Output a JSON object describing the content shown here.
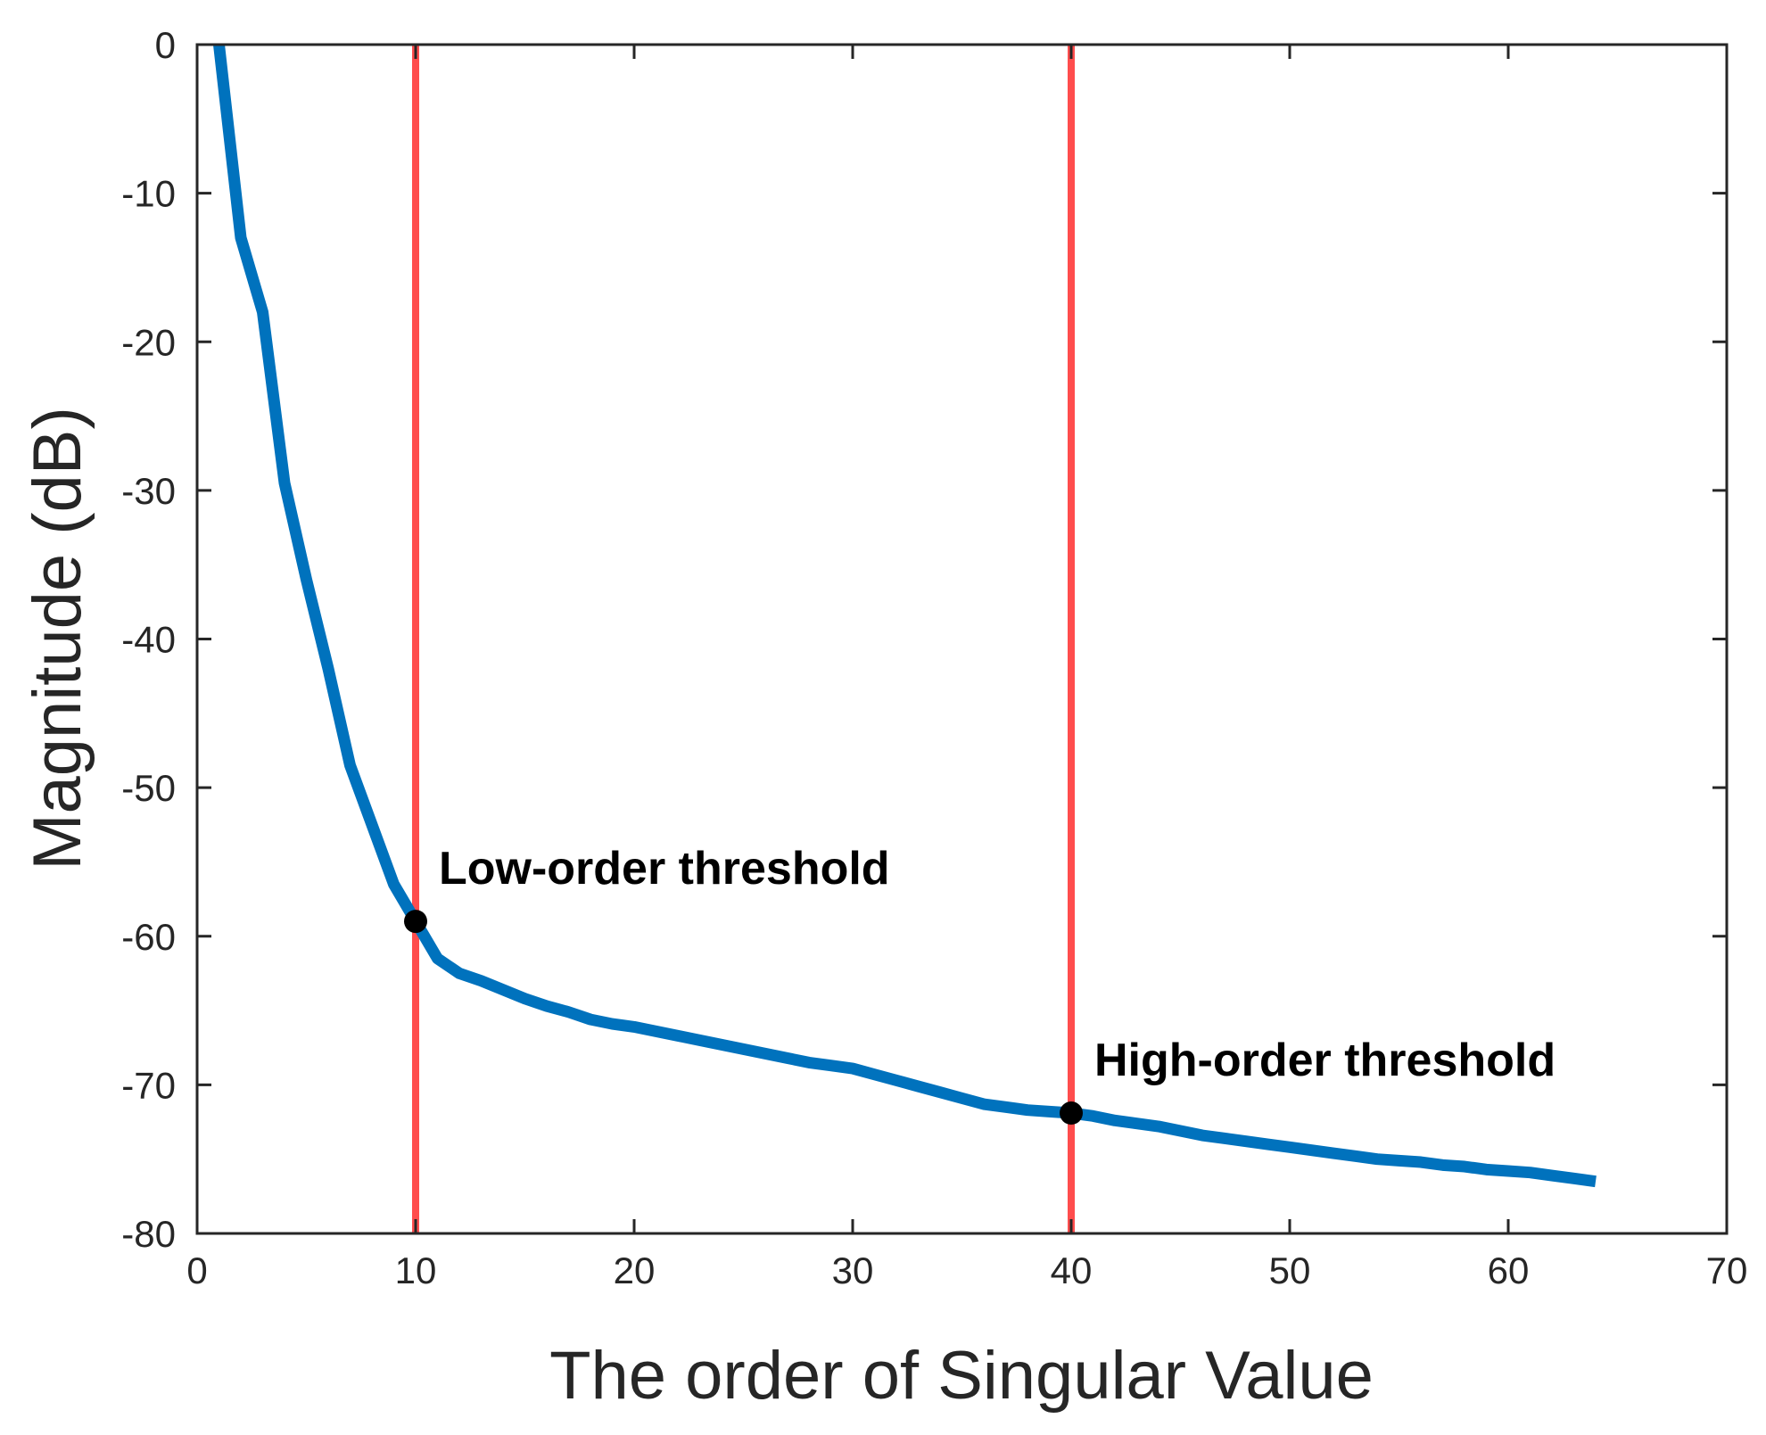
{
  "chart_data": {
    "type": "line",
    "title": "",
    "xlabel": "The order of Singular Value",
    "ylabel": "Magnitude (dB)",
    "xlim": [
      0,
      70
    ],
    "ylim": [
      -80,
      0
    ],
    "xticks": [
      0,
      10,
      20,
      30,
      40,
      50,
      60,
      70
    ],
    "yticks": [
      0,
      -10,
      -20,
      -30,
      -40,
      -50,
      -60,
      -70,
      -80
    ],
    "grid": false,
    "series": [
      {
        "color": "#0072BD",
        "x": [
          1,
          2,
          3,
          4,
          5,
          6,
          7,
          8,
          9,
          10,
          11,
          12,
          13,
          14,
          15,
          16,
          17,
          18,
          19,
          20,
          21,
          22,
          23,
          24,
          25,
          26,
          27,
          28,
          29,
          30,
          31,
          32,
          33,
          34,
          35,
          36,
          37,
          38,
          39,
          40,
          41,
          42,
          43,
          44,
          45,
          46,
          47,
          48,
          49,
          50,
          51,
          52,
          53,
          54,
          55,
          56,
          57,
          58,
          59,
          60,
          61,
          62,
          63,
          64
        ],
        "y": [
          0,
          -13,
          -18,
          -29.5,
          -36,
          -42,
          -48.5,
          -52.5,
          -56.5,
          -59,
          -61.5,
          -62.5,
          -63,
          -63.6,
          -64.2,
          -64.7,
          -65.1,
          -65.6,
          -65.9,
          -66.1,
          -66.4,
          -66.7,
          -67,
          -67.3,
          -67.6,
          -67.9,
          -68.2,
          -68.5,
          -68.7,
          -68.9,
          -69.3,
          -69.7,
          -70.1,
          -70.5,
          -70.9,
          -71.3,
          -71.5,
          -71.7,
          -71.8,
          -71.9,
          -72.1,
          -72.4,
          -72.6,
          -72.8,
          -73.1,
          -73.4,
          -73.6,
          -73.8,
          -74.0,
          -74.2,
          -74.4,
          -74.6,
          -74.8,
          -75.0,
          -75.1,
          -75.2,
          -75.4,
          -75.5,
          -75.7,
          -75.8,
          -75.9,
          -76.1,
          -76.3,
          -76.5
        ]
      }
    ],
    "thresholds": [
      {
        "x": 10,
        "y": -59,
        "label": "Low-order threshold",
        "color": "#FF4D4D"
      },
      {
        "x": 40,
        "y": -71.9,
        "label": "High-order threshold",
        "color": "#FF4D4D"
      }
    ]
  }
}
